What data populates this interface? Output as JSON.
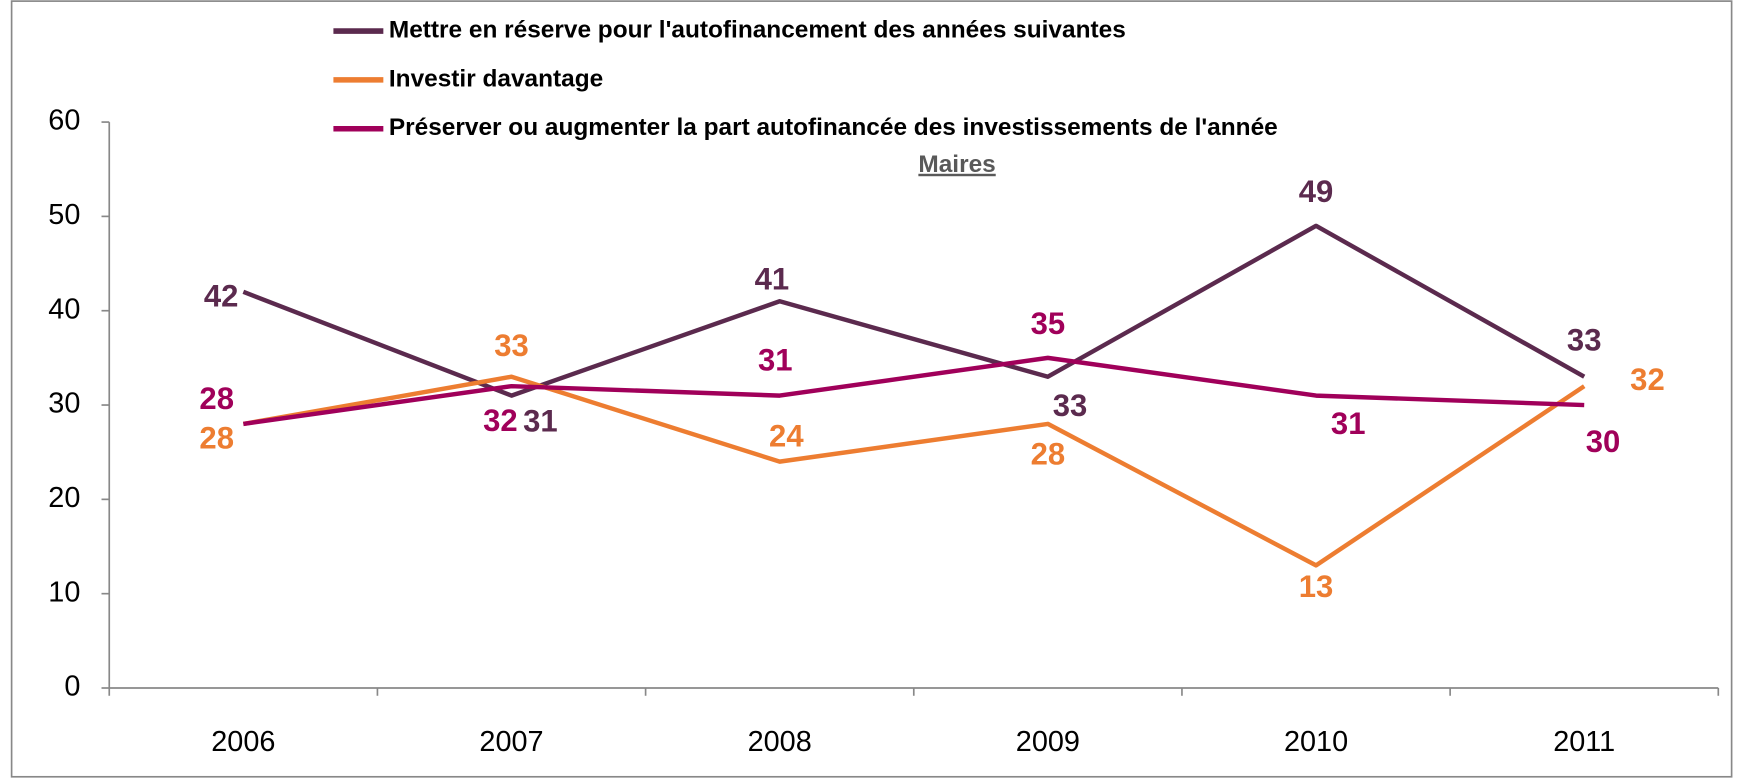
{
  "chart_data": {
    "type": "line",
    "subtitle": "Maires",
    "categories": [
      "2006",
      "2007",
      "2008",
      "2009",
      "2010",
      "2011"
    ],
    "series": [
      {
        "name": "Mettre en réserve pour l'autofinancement des années suivantes",
        "color": "#5b2a4e",
        "values": [
          42,
          31,
          41,
          33,
          49,
          33
        ]
      },
      {
        "name": "Investir davantage",
        "color": "#ed7d31",
        "values": [
          28,
          33,
          24,
          28,
          13,
          32
        ]
      },
      {
        "name": "Préserver ou augmenter la part autofinancée des investissements de l'année",
        "color": "#a0005a",
        "values": [
          28,
          32,
          31,
          35,
          31,
          30
        ]
      }
    ],
    "ylim": [
      0,
      60
    ],
    "yticks": [
      0,
      10,
      20,
      30,
      40,
      50,
      60
    ],
    "grid": false,
    "legend": "top"
  }
}
